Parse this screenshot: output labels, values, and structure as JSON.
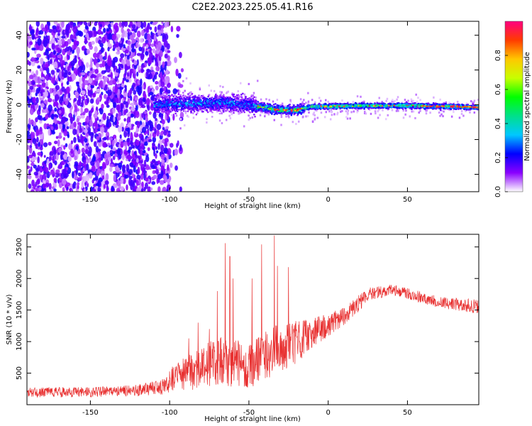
{
  "title": "C2E2.2023.225.05.41.R16",
  "chart_data": [
    {
      "type": "heatmap",
      "xlabel": "Height of straight line (km)",
      "ylabel": "Frequency (Hz)",
      "xlim": [
        -190,
        95
      ],
      "ylim": [
        -50,
        48
      ],
      "xticks": [
        -150,
        -100,
        -50,
        0,
        50
      ],
      "yticks": [
        -40,
        -20,
        0,
        20,
        40
      ],
      "colorbar": {
        "label": "Normalized spectral amplitude",
        "range": [
          0.0,
          1.0
        ],
        "ticks": [
          0.0,
          0.2,
          0.4,
          0.6,
          0.8
        ],
        "colors": [
          "#ffffff",
          "#8a00ff",
          "#0000ff",
          "#00c8ff",
          "#00e08a",
          "#00ff00",
          "#c8ff00",
          "#ffc800",
          "#ff3c00",
          "#ff0080"
        ]
      },
      "regions": [
        {
          "x_range": [
            -190,
            -100
          ],
          "f_range": [
            -50,
            48
          ],
          "amplitude": [
            0.05,
            0.2
          ],
          "description_of_content": "scattered noise"
        },
        {
          "x_range": [
            -110,
            -45
          ],
          "f_range": [
            -6,
            8
          ],
          "amplitude": [
            0.1,
            0.35
          ]
        },
        {
          "x_range": [
            -45,
            -15
          ],
          "f_range": [
            -5,
            2
          ],
          "amplitude": [
            0.2,
            0.9
          ]
        },
        {
          "x_range": [
            -15,
            95
          ],
          "f_range": [
            -3,
            2
          ],
          "amplitude": [
            0.3,
            0.95
          ]
        }
      ],
      "trace_center": [
        [
          -110,
          0
        ],
        [
          -80,
          1
        ],
        [
          -60,
          1
        ],
        [
          -45,
          -1
        ],
        [
          -30,
          -3
        ],
        [
          -20,
          -3
        ],
        [
          -10,
          -1
        ],
        [
          0,
          -1
        ],
        [
          20,
          -0.5
        ],
        [
          50,
          -0.5
        ],
        [
          80,
          -1
        ],
        [
          95,
          -1.5
        ]
      ]
    },
    {
      "type": "line",
      "xlabel": "Height of straight line (km)",
      "ylabel": "SNR (10 * v/v)",
      "xlim": [
        -190,
        95
      ],
      "ylim": [
        0,
        2700
      ],
      "xticks": [
        -150,
        -100,
        -50,
        0,
        50
      ],
      "yticks": [
        500,
        1000,
        1500,
        2000,
        2500
      ],
      "color": "#e83030",
      "envelope": [
        {
          "x": -190,
          "mean": 200,
          "spread": 80
        },
        {
          "x": -150,
          "mean": 200,
          "spread": 80
        },
        {
          "x": -120,
          "mean": 230,
          "spread": 90
        },
        {
          "x": -105,
          "mean": 280,
          "spread": 120
        },
        {
          "x": -95,
          "mean": 450,
          "spread": 250
        },
        {
          "x": -80,
          "mean": 600,
          "spread": 350
        },
        {
          "x": -65,
          "mean": 700,
          "spread": 400
        },
        {
          "x": -50,
          "mean": 600,
          "spread": 350
        },
        {
          "x": -35,
          "mean": 850,
          "spread": 400
        },
        {
          "x": -20,
          "mean": 1000,
          "spread": 350
        },
        {
          "x": -10,
          "mean": 1150,
          "spread": 250
        },
        {
          "x": 0,
          "mean": 1250,
          "spread": 180
        },
        {
          "x": 15,
          "mean": 1500,
          "spread": 150
        },
        {
          "x": 25,
          "mean": 1750,
          "spread": 100
        },
        {
          "x": 40,
          "mean": 1820,
          "spread": 90
        },
        {
          "x": 55,
          "mean": 1730,
          "spread": 90
        },
        {
          "x": 70,
          "mean": 1620,
          "spread": 90
        },
        {
          "x": 85,
          "mean": 1580,
          "spread": 100
        },
        {
          "x": 95,
          "mean": 1550,
          "spread": 120
        }
      ],
      "spikes": [
        {
          "x": -65,
          "y": 2560
        },
        {
          "x": -62,
          "y": 2350
        },
        {
          "x": -60,
          "y": 2000
        },
        {
          "x": -48,
          "y": 2000
        },
        {
          "x": -42,
          "y": 2540
        },
        {
          "x": -34,
          "y": 2680
        },
        {
          "x": -32,
          "y": 2200
        },
        {
          "x": -25,
          "y": 2180
        },
        {
          "x": -70,
          "y": 1800
        },
        {
          "x": -75,
          "y": 1200
        },
        {
          "x": -82,
          "y": 1300
        },
        {
          "x": -88,
          "y": 1050
        }
      ]
    }
  ]
}
